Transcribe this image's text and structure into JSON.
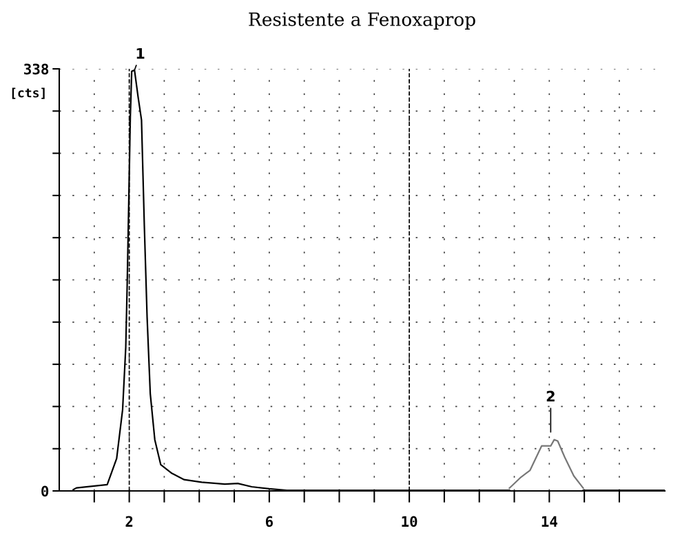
{
  "chart_data": {
    "type": "line",
    "title": "Resistente a Fenoxaprop",
    "ylabel": "[cts]",
    "xlim": [
      0,
      17.3
    ],
    "ylim": [
      0,
      338
    ],
    "xticks": [
      {
        "value": 1,
        "label": null
      },
      2,
      {
        "value": 3,
        "label": null
      },
      {
        "value": 4,
        "label": null
      },
      {
        "value": 5,
        "label": null
      },
      6,
      {
        "value": 7,
        "label": null
      },
      {
        "value": 8,
        "label": null
      },
      {
        "value": 9,
        "label": null
      },
      10,
      {
        "value": 11,
        "label": null
      },
      {
        "value": 12,
        "label": null
      },
      {
        "value": 13,
        "label": null
      },
      14,
      {
        "value": 15,
        "label": null
      },
      {
        "value": 16,
        "label": null
      }
    ],
    "yticks": [
      0,
      {
        "value": 33.8,
        "label": null
      },
      {
        "value": 67.6,
        "label": null
      },
      {
        "value": 101.4,
        "label": null
      },
      {
        "value": 135.2,
        "label": null
      },
      {
        "value": 169,
        "label": null
      },
      {
        "value": 202.8,
        "label": null
      },
      {
        "value": 236.6,
        "label": null
      },
      {
        "value": 270.4,
        "label": null
      },
      {
        "value": 304.2,
        "label": null
      },
      338
    ],
    "grid": true,
    "marker": "none",
    "line_style": "solid",
    "series": [
      {
        "color": "#000000",
        "x": [
          0.4,
          0.49,
          1.37,
          1.64,
          1.81,
          1.9,
          1.94,
          1.99,
          2.03,
          2.07,
          2.15,
          2.25,
          2.35,
          2.43,
          2.51,
          2.6,
          2.73,
          2.9,
          3.22,
          3.57,
          4.07,
          4.73,
          5.1,
          5.5,
          6.0,
          6.5,
          12.86
        ],
        "values": [
          1,
          2.4,
          5,
          26,
          65,
          115,
          164,
          238,
          299,
          336,
          337,
          316,
          297,
          213,
          139,
          78,
          41,
          21,
          14,
          9,
          7,
          5.5,
          6,
          3.3,
          1.7,
          0.5,
          0.5
        ]
      },
      {
        "color": "#777777",
        "x": [
          12.86,
          13.19,
          13.45,
          13.78,
          14.04,
          14.14,
          14.24,
          14.44,
          14.7,
          14.97
        ],
        "values": [
          2.2,
          11,
          16.5,
          36,
          36,
          41,
          40,
          27,
          12,
          2.2
        ]
      },
      {
        "color": "#000000",
        "x": [
          14.97,
          17.3
        ],
        "values": [
          0.5,
          0.5
        ]
      }
    ],
    "ref_lines": [
      {
        "axis": "x",
        "value": 2,
        "line_style": "dashed",
        "color": "#000000"
      },
      {
        "axis": "x",
        "value": 10,
        "line_style": "dashed",
        "color": "#000000"
      }
    ],
    "annotations": [
      {
        "text": "1",
        "x": 2.15,
        "y": 337
      },
      {
        "text": "2",
        "x": 14.04,
        "y": 41
      }
    ]
  }
}
